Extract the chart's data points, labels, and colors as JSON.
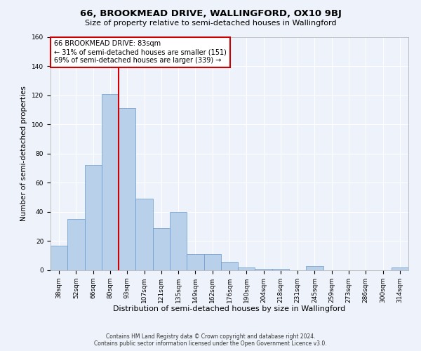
{
  "title": "66, BROOKMEAD DRIVE, WALLINGFORD, OX10 9BJ",
  "subtitle": "Size of property relative to semi-detached houses in Wallingford",
  "xlabel": "Distribution of semi-detached houses by size in Wallingford",
  "ylabel": "Number of semi-detached properties",
  "footer_line1": "Contains HM Land Registry data © Crown copyright and database right 2024.",
  "footer_line2": "Contains public sector information licensed under the Open Government Licence v3.0.",
  "categories": [
    "38sqm",
    "52sqm",
    "66sqm",
    "80sqm",
    "93sqm",
    "107sqm",
    "121sqm",
    "135sqm",
    "149sqm",
    "162sqm",
    "176sqm",
    "190sqm",
    "204sqm",
    "218sqm",
    "231sqm",
    "245sqm",
    "259sqm",
    "273sqm",
    "286sqm",
    "300sqm",
    "314sqm"
  ],
  "values": [
    17,
    35,
    72,
    121,
    111,
    49,
    29,
    40,
    11,
    11,
    6,
    2,
    1,
    1,
    0,
    3,
    0,
    0,
    0,
    0,
    2
  ],
  "bar_color": "#b8d0ea",
  "bar_edge_color": "#6699cc",
  "vline_x": 3.5,
  "vline_color": "#cc0000",
  "annotation_text": "66 BROOKMEAD DRIVE: 83sqm\n← 31% of semi-detached houses are smaller (151)\n69% of semi-detached houses are larger (339) →",
  "annotation_box_color": "#ffffff",
  "annotation_box_edge_color": "#cc0000",
  "ylim": [
    0,
    160
  ],
  "yticks": [
    0,
    20,
    40,
    60,
    80,
    100,
    120,
    140,
    160
  ],
  "background_color": "#eef2fb",
  "grid_color": "#ffffff",
  "title_fontsize": 9.5,
  "subtitle_fontsize": 8,
  "xlabel_fontsize": 8,
  "ylabel_fontsize": 7.5,
  "tick_fontsize": 6.5,
  "annotation_fontsize": 7,
  "footer_fontsize": 5.5
}
